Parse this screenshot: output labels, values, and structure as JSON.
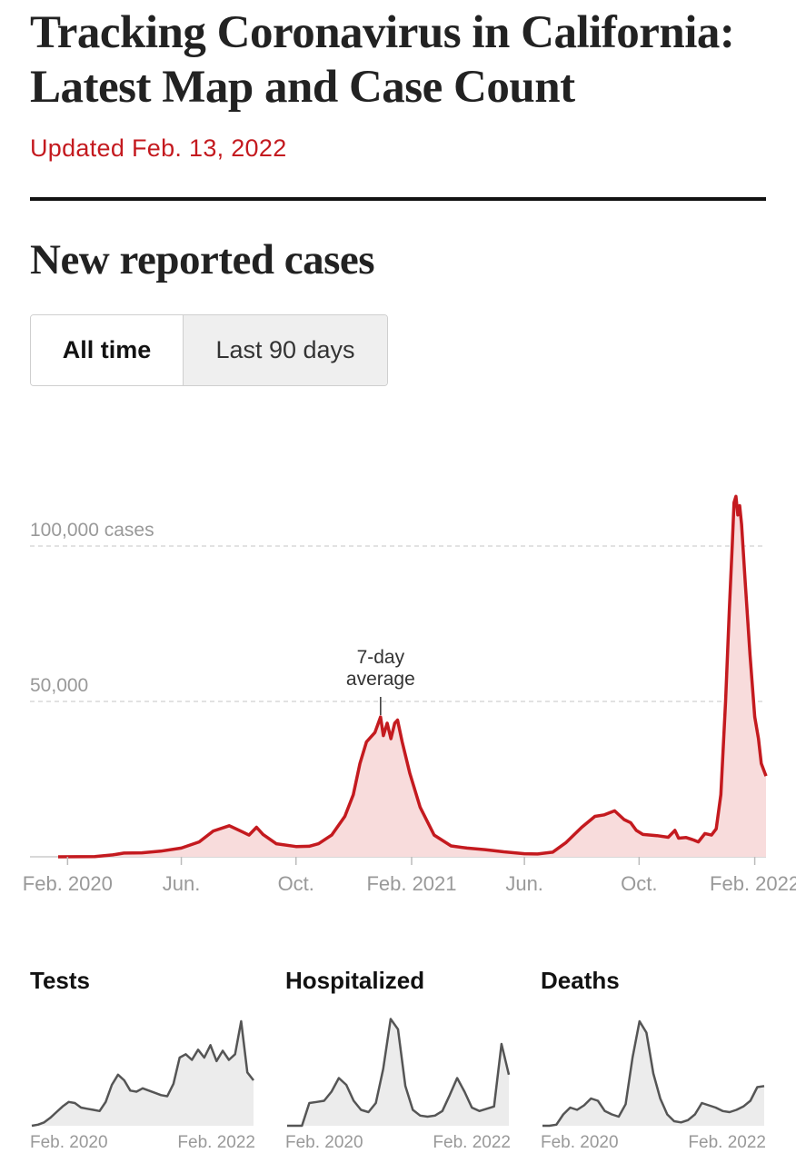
{
  "header": {
    "headline_line1": "Tracking Coronavirus in California:",
    "headline_line2": "Latest Map and Case Count",
    "updated": "Updated Feb. 13, 2022"
  },
  "section": {
    "title": "New reported cases"
  },
  "toggle": {
    "options": [
      "All time",
      "Last 90 days"
    ],
    "selected": "All time"
  },
  "colors": {
    "accent": "#c41a1f",
    "fill": "#f8dcdc",
    "gray_line": "#555555",
    "gray_fill": "#ececec"
  },
  "chart_data": [
    {
      "type": "area",
      "title": "New reported cases",
      "series": [
        {
          "name": "7-day average",
          "points": [
            [
              "2020-01-22",
              0
            ],
            [
              "2020-03-01",
              100
            ],
            [
              "2020-03-20",
              600
            ],
            [
              "2020-04-01",
              1200
            ],
            [
              "2020-04-20",
              1300
            ],
            [
              "2020-05-10",
              1800
            ],
            [
              "2020-06-01",
              2800
            ],
            [
              "2020-06-20",
              4800
            ],
            [
              "2020-07-05",
              8300
            ],
            [
              "2020-07-22",
              10000
            ],
            [
              "2020-08-05",
              8000
            ],
            [
              "2020-08-12",
              7000
            ],
            [
              "2020-08-20",
              9500
            ],
            [
              "2020-08-27",
              7200
            ],
            [
              "2020-09-10",
              4200
            ],
            [
              "2020-10-01",
              3300
            ],
            [
              "2020-10-15",
              3400
            ],
            [
              "2020-10-25",
              4200
            ],
            [
              "2020-11-08",
              7000
            ],
            [
              "2020-11-22",
              13000
            ],
            [
              "2020-12-01",
              20000
            ],
            [
              "2020-12-08",
              30000
            ],
            [
              "2020-12-15",
              37000
            ],
            [
              "2020-12-24",
              40000
            ],
            [
              "2020-12-30",
              45000
            ],
            [
              "2021-01-02",
              39000
            ],
            [
              "2021-01-06",
              43000
            ],
            [
              "2021-01-10",
              38000
            ],
            [
              "2021-01-14",
              43000
            ],
            [
              "2021-01-17",
              44000
            ],
            [
              "2021-01-22",
              37000
            ],
            [
              "2021-01-30",
              27000
            ],
            [
              "2021-02-10",
              16000
            ],
            [
              "2021-02-25",
              7000
            ],
            [
              "2021-03-15",
              3500
            ],
            [
              "2021-04-01",
              2800
            ],
            [
              "2021-04-20",
              2300
            ],
            [
              "2021-05-10",
              1600
            ],
            [
              "2021-06-01",
              1000
            ],
            [
              "2021-06-15",
              900
            ],
            [
              "2021-07-01",
              1500
            ],
            [
              "2021-07-15",
              4500
            ],
            [
              "2021-08-01",
              9500
            ],
            [
              "2021-08-15",
              13000
            ],
            [
              "2021-08-25",
              13500
            ],
            [
              "2021-09-05",
              14800
            ],
            [
              "2021-09-15",
              12000
            ],
            [
              "2021-09-22",
              11000
            ],
            [
              "2021-09-28",
              8500
            ],
            [
              "2021-10-05",
              7200
            ],
            [
              "2021-10-20",
              6800
            ],
            [
              "2021-11-01",
              6300
            ],
            [
              "2021-11-08",
              8500
            ],
            [
              "2021-11-12",
              6000
            ],
            [
              "2021-11-20",
              6200
            ],
            [
              "2021-11-28",
              5400
            ],
            [
              "2021-12-03",
              4800
            ],
            [
              "2021-12-10",
              7500
            ],
            [
              "2021-12-17",
              7000
            ],
            [
              "2021-12-22",
              9000
            ],
            [
              "2021-12-27",
              20000
            ],
            [
              "2022-01-01",
              50000
            ],
            [
              "2022-01-05",
              80000
            ],
            [
              "2022-01-08",
              100000
            ],
            [
              "2022-01-10",
              114000
            ],
            [
              "2022-01-12",
              116000
            ],
            [
              "2022-01-14",
              110000
            ],
            [
              "2022-01-16",
              113000
            ],
            [
              "2022-01-18",
              107000
            ],
            [
              "2022-01-22",
              88000
            ],
            [
              "2022-01-27",
              65000
            ],
            [
              "2022-02-01",
              45000
            ],
            [
              "2022-02-05",
              38000
            ],
            [
              "2022-02-08",
              30000
            ],
            [
              "2022-02-13",
              26000
            ]
          ]
        }
      ],
      "y_ticks": [
        {
          "value": 100000,
          "label": "100,000 cases"
        },
        {
          "value": 50000,
          "label": "50,000"
        }
      ],
      "x_ticks": [
        {
          "date": "2020-02-01",
          "label": "Feb. 2020"
        },
        {
          "date": "2020-06-01",
          "label": "Jun."
        },
        {
          "date": "2020-10-01",
          "label": "Oct."
        },
        {
          "date": "2021-02-01",
          "label": "Feb. 2021"
        },
        {
          "date": "2021-06-01",
          "label": "Jun."
        },
        {
          "date": "2021-10-01",
          "label": "Oct."
        },
        {
          "date": "2022-02-01",
          "label": "Feb. 2022"
        }
      ],
      "annotation": {
        "date": "2020-12-30",
        "value": 45000,
        "line1": "7-day",
        "line2": "average"
      },
      "ylim": [
        0,
        120000
      ],
      "xlim": [
        "2020-01-22",
        "2022-02-13"
      ],
      "grid": "dashed at labeled y ticks"
    },
    {
      "type": "area",
      "title": "Tests",
      "x_labels": [
        "Feb. 2020",
        "Feb. 2022"
      ],
      "relative_values": [
        0,
        1,
        3,
        7,
        12,
        17,
        21,
        20,
        16,
        15,
        14,
        13,
        21,
        36,
        45,
        40,
        31,
        30,
        33,
        31,
        29,
        27,
        26,
        37,
        60,
        63,
        58,
        67,
        60,
        71,
        57,
        66,
        58,
        63,
        92,
        47,
        40
      ]
    },
    {
      "type": "area",
      "title": "Hospitalized",
      "x_labels": [
        "Feb. 2020",
        "Feb. 2022"
      ],
      "relative_values": [
        0,
        0,
        0,
        20,
        21,
        22,
        30,
        42,
        36,
        22,
        14,
        12,
        20,
        50,
        94,
        85,
        35,
        14,
        9,
        8,
        9,
        13,
        27,
        42,
        30,
        16,
        13,
        15,
        17,
        72,
        45
      ]
    },
    {
      "type": "area",
      "title": "Deaths",
      "x_labels": [
        "Feb. 2020",
        "Feb. 2022"
      ],
      "relative_values": [
        0,
        0,
        1,
        10,
        16,
        14,
        18,
        24,
        22,
        13,
        10,
        8,
        19,
        60,
        92,
        82,
        46,
        24,
        10,
        4,
        3,
        5,
        10,
        20,
        18,
        16,
        13,
        12,
        14,
        17,
        22,
        34,
        35
      ]
    }
  ]
}
